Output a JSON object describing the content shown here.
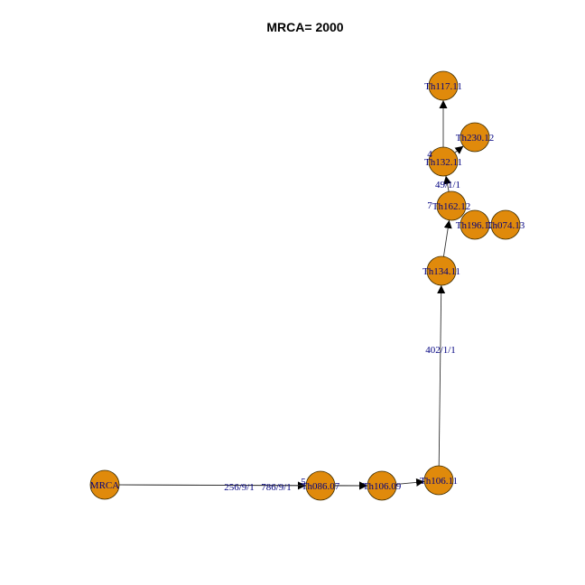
{
  "title": "MRCA= 2000",
  "colors": {
    "node_fill": "#E08A0B",
    "label_color": "#000080",
    "edge_color": "#333333"
  },
  "nodes": [
    {
      "id": "MRCA",
      "label": "MRCA"
    },
    {
      "id": "Th086.07",
      "label": "Th086.07"
    },
    {
      "id": "Th106.09",
      "label": "Th106.09"
    },
    {
      "id": "Th106.11",
      "label": "Th106.11"
    },
    {
      "id": "Th134.11",
      "label": "Th134.11"
    },
    {
      "id": "Th162.12",
      "label": "Th162.12"
    },
    {
      "id": "Th132.11",
      "label": "Th132.11"
    },
    {
      "id": "Th117.11",
      "label": "Th117.11"
    },
    {
      "id": "Th230.12",
      "label": "Th230.12"
    },
    {
      "id": "Th196.12",
      "label": "Th196.12"
    },
    {
      "id": "Th074.13",
      "label": "Th074.13"
    }
  ],
  "edges": [
    {
      "from": "MRCA",
      "to": "Th086.07",
      "label": "256/9/1"
    },
    {
      "from": "MRCA",
      "to": "Th106.09",
      "label": "786/9/1"
    },
    {
      "from": "Th086.07",
      "to": "Th106.09",
      "label": ""
    },
    {
      "from": "Th106.09",
      "to": "Th106.11",
      "label": ""
    },
    {
      "from": "Th106.11",
      "to": "Th134.11",
      "label": "402/1/1"
    },
    {
      "from": "Th134.11",
      "to": "Th162.12",
      "label": ""
    },
    {
      "from": "Th162.12",
      "to": "Th132.11",
      "label": "49/1/1"
    },
    {
      "from": "Th132.11",
      "to": "Th117.11",
      "label": ""
    },
    {
      "from": "Th132.11",
      "to": "Th230.12",
      "label": ""
    }
  ],
  "partial_labels": [
    {
      "text": "5",
      "near": "Th086.07"
    },
    {
      "text": "7",
      "near": "Th162.12"
    },
    {
      "text": "4",
      "near": "Th132.11"
    }
  ]
}
